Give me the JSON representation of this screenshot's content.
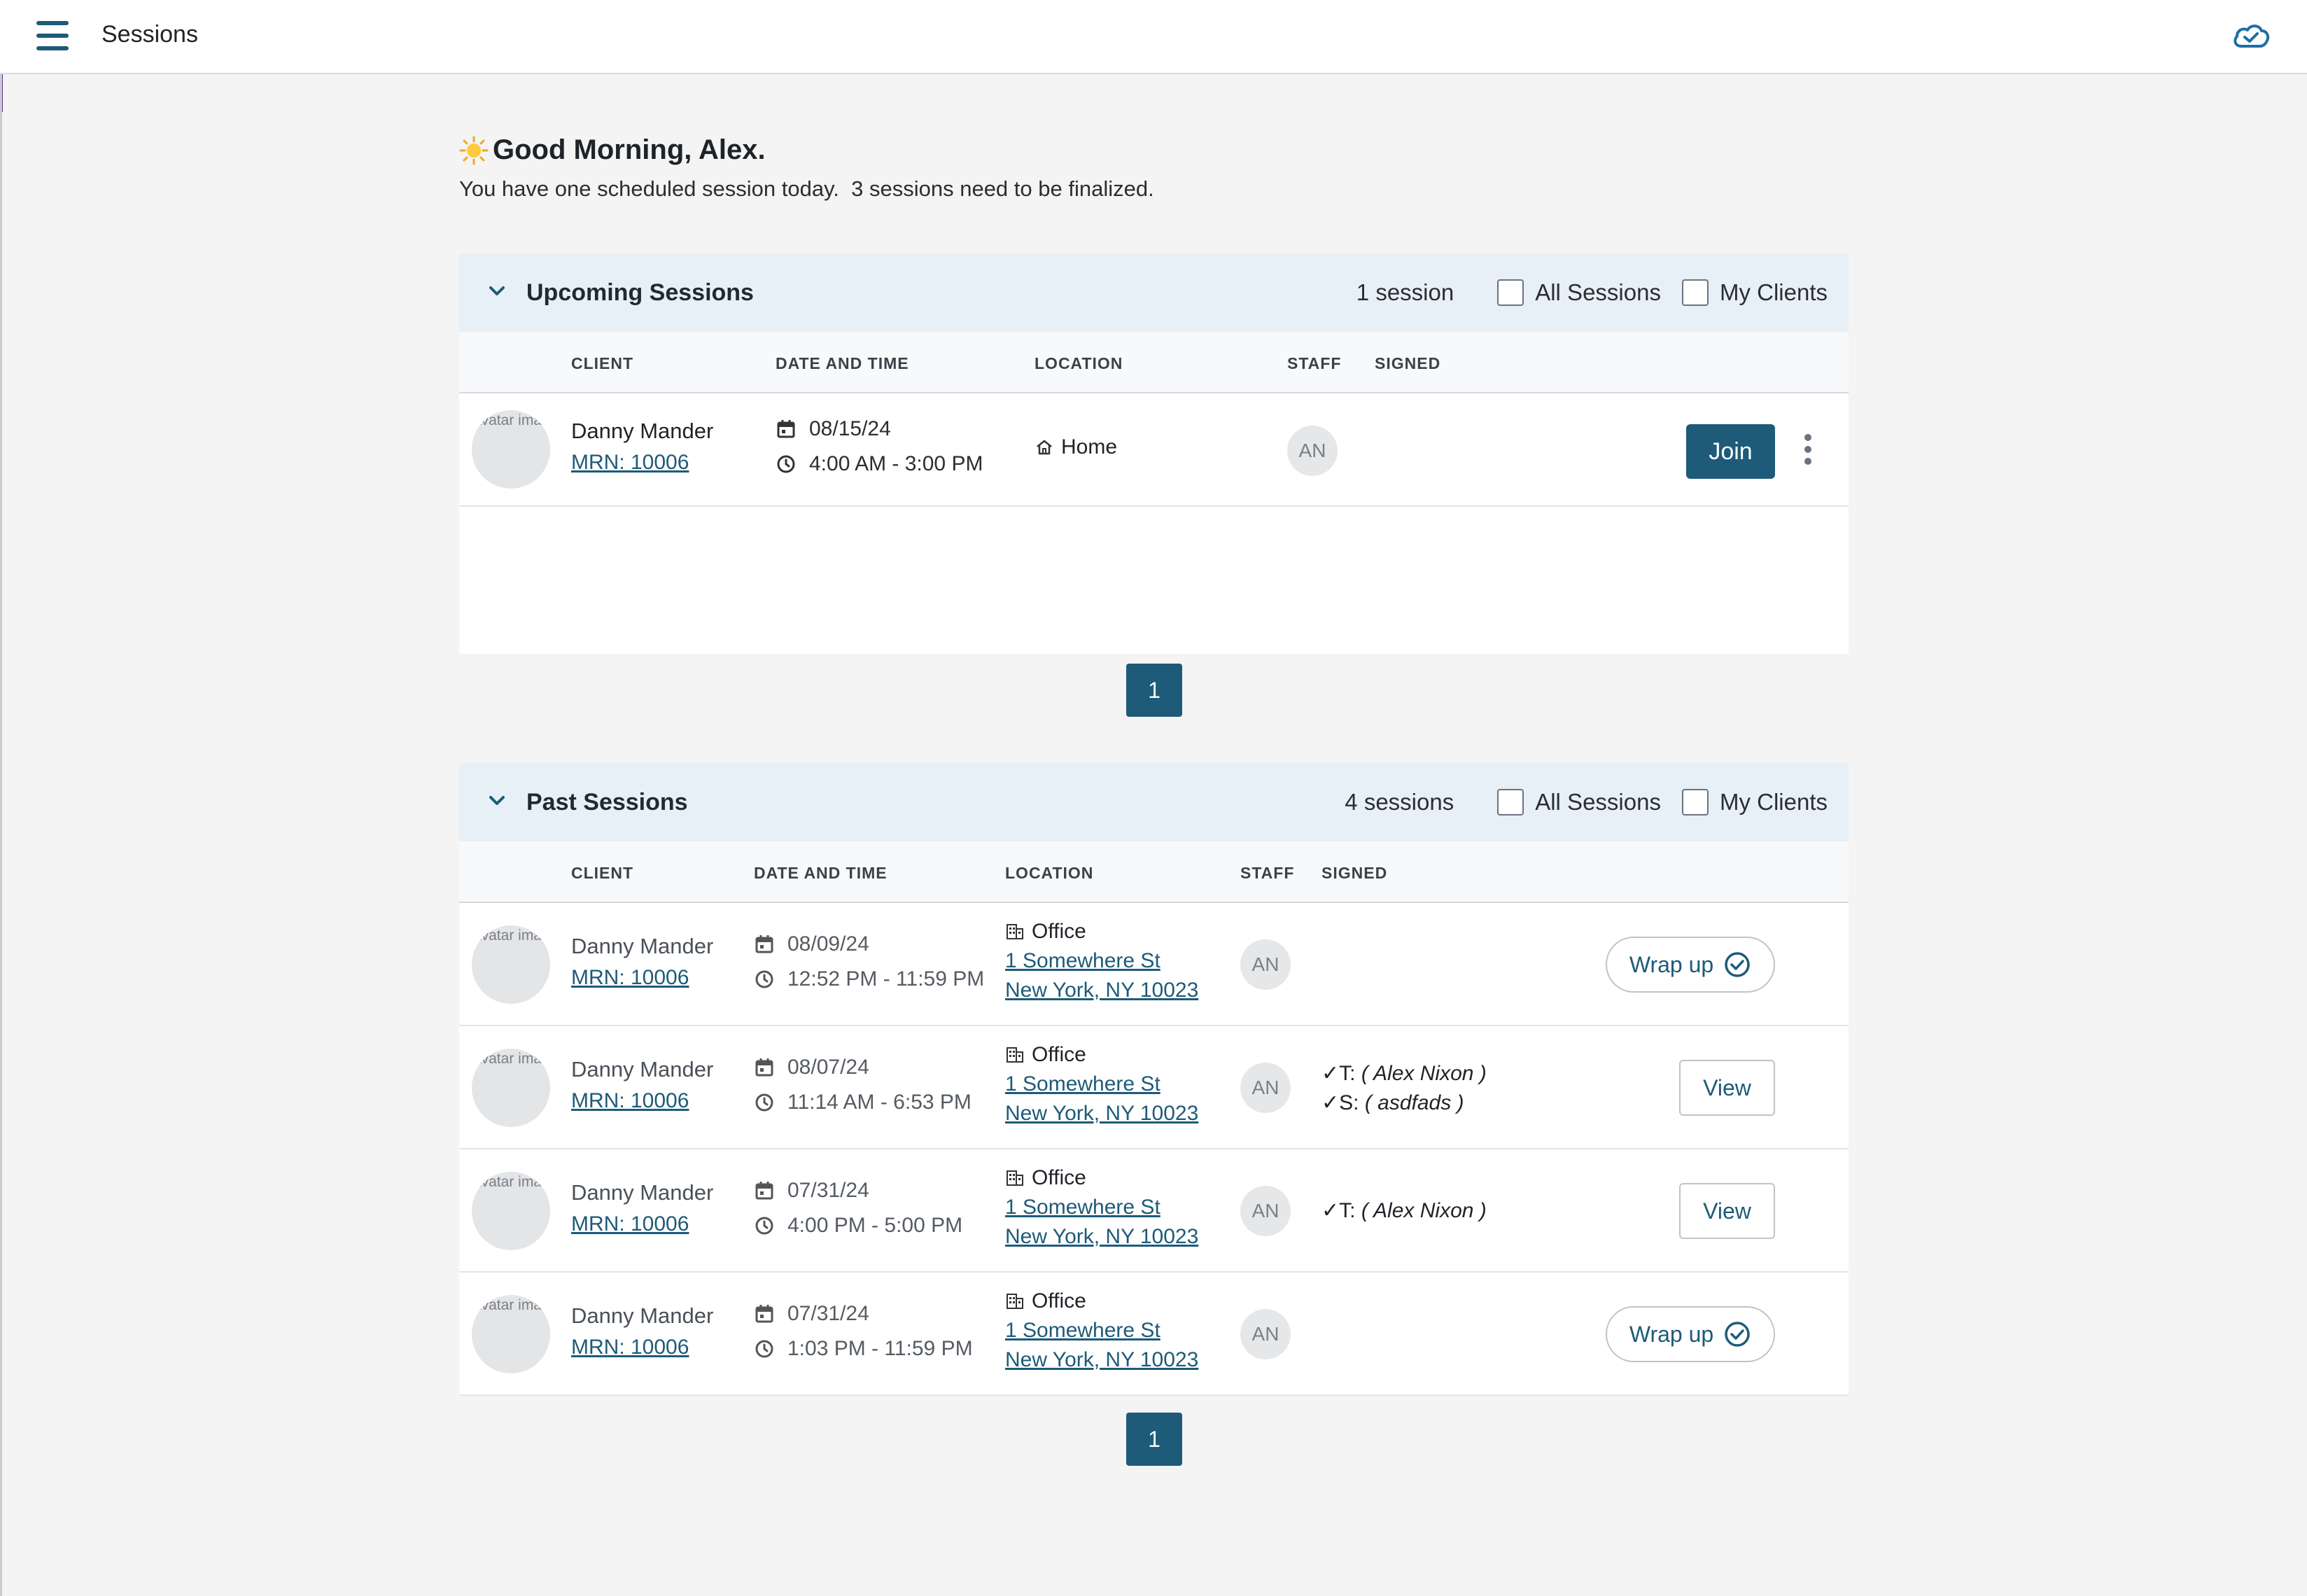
{
  "app": {
    "title": "Sessions"
  },
  "greeting": {
    "headline": "Good Morning, Alex.",
    "summary": "You have one scheduled session today.  3 sessions need to be finalized."
  },
  "upcoming": {
    "title": "Upcoming Sessions",
    "count": "1 session",
    "filters": {
      "all_sessions": "All Sessions",
      "my_clients": "My Clients"
    },
    "columns": [
      "CLIENT",
      "DATE AND TIME",
      "LOCATION",
      "STAFF",
      "SIGNED"
    ],
    "rows": [
      {
        "avatar_alt": "Avatar image for Danny Mander",
        "client": "Danny Mander",
        "mrn": "MRN: 10006",
        "date": "08/15/24",
        "time": "4:00 AM - 3:00 PM",
        "location": "Home",
        "staff": "AN",
        "action": "Join"
      }
    ],
    "page": "1"
  },
  "past": {
    "title": "Past Sessions",
    "count": "4 sessions",
    "filters": {
      "all_sessions": "All Sessions",
      "my_clients": "My Clients"
    },
    "columns": [
      "CLIENT",
      "DATE AND TIME",
      "LOCATION",
      "STAFF",
      "SIGNED"
    ],
    "rows": [
      {
        "avatar_alt": "Avatar image for Danny Mander",
        "client": "Danny Mander",
        "mrn": "MRN: 10006",
        "date": "08/09/24",
        "time": "12:52 PM - 11:59 PM",
        "location": "Office",
        "address1": "1 Somewhere St",
        "address2": "New York, NY 10023",
        "staff": "AN",
        "signed_t": "",
        "signed_s": "",
        "action": "Wrap up"
      },
      {
        "avatar_alt": "Avatar image for Danny Mander",
        "client": "Danny Mander",
        "mrn": "MRN: 10006",
        "date": "08/07/24",
        "time": "11:14 AM - 6:53 PM",
        "location": "Office",
        "address1": "1 Somewhere St",
        "address2": "New York, NY 10023",
        "staff": "AN",
        "signed_t_prefix": "✓T:",
        "signed_t": "( Alex Nixon )",
        "signed_s_prefix": "✓S:",
        "signed_s": "( asdfads )",
        "action": "View"
      },
      {
        "avatar_alt": "Avatar image for Danny Mander",
        "client": "Danny Mander",
        "mrn": "MRN: 10006",
        "date": "07/31/24",
        "time": "4:00 PM - 5:00 PM",
        "location": "Office",
        "address1": "1 Somewhere St",
        "address2": "New York, NY 10023",
        "staff": "AN",
        "signed_t_prefix": "✓T:",
        "signed_t": "( Alex Nixon )",
        "action": "View"
      },
      {
        "avatar_alt": "Avatar image for Danny Mander",
        "client": "Danny Mander",
        "mrn": "MRN: 10006",
        "date": "07/31/24",
        "time": "1:03 PM - 11:59 PM",
        "location": "Office",
        "address1": "1 Somewhere St",
        "address2": "New York, NY 10023",
        "staff": "AN",
        "action": "Wrap up"
      }
    ],
    "page": "1"
  },
  "icons": {
    "menu": "hamburger-menu-icon",
    "sync": "cloud-check-icon",
    "greeting": "sun-icon",
    "collapse": "chevron-down-icon",
    "date": "calendar-icon",
    "time": "clock-icon",
    "home": "home-icon",
    "office": "building-icon",
    "complete": "check-circle-icon",
    "more": "more-vertical-icon"
  },
  "colors": {
    "primary": "#1d5b78",
    "header_bg": "#e8f0f7",
    "page_bg": "#f4f4f4"
  }
}
